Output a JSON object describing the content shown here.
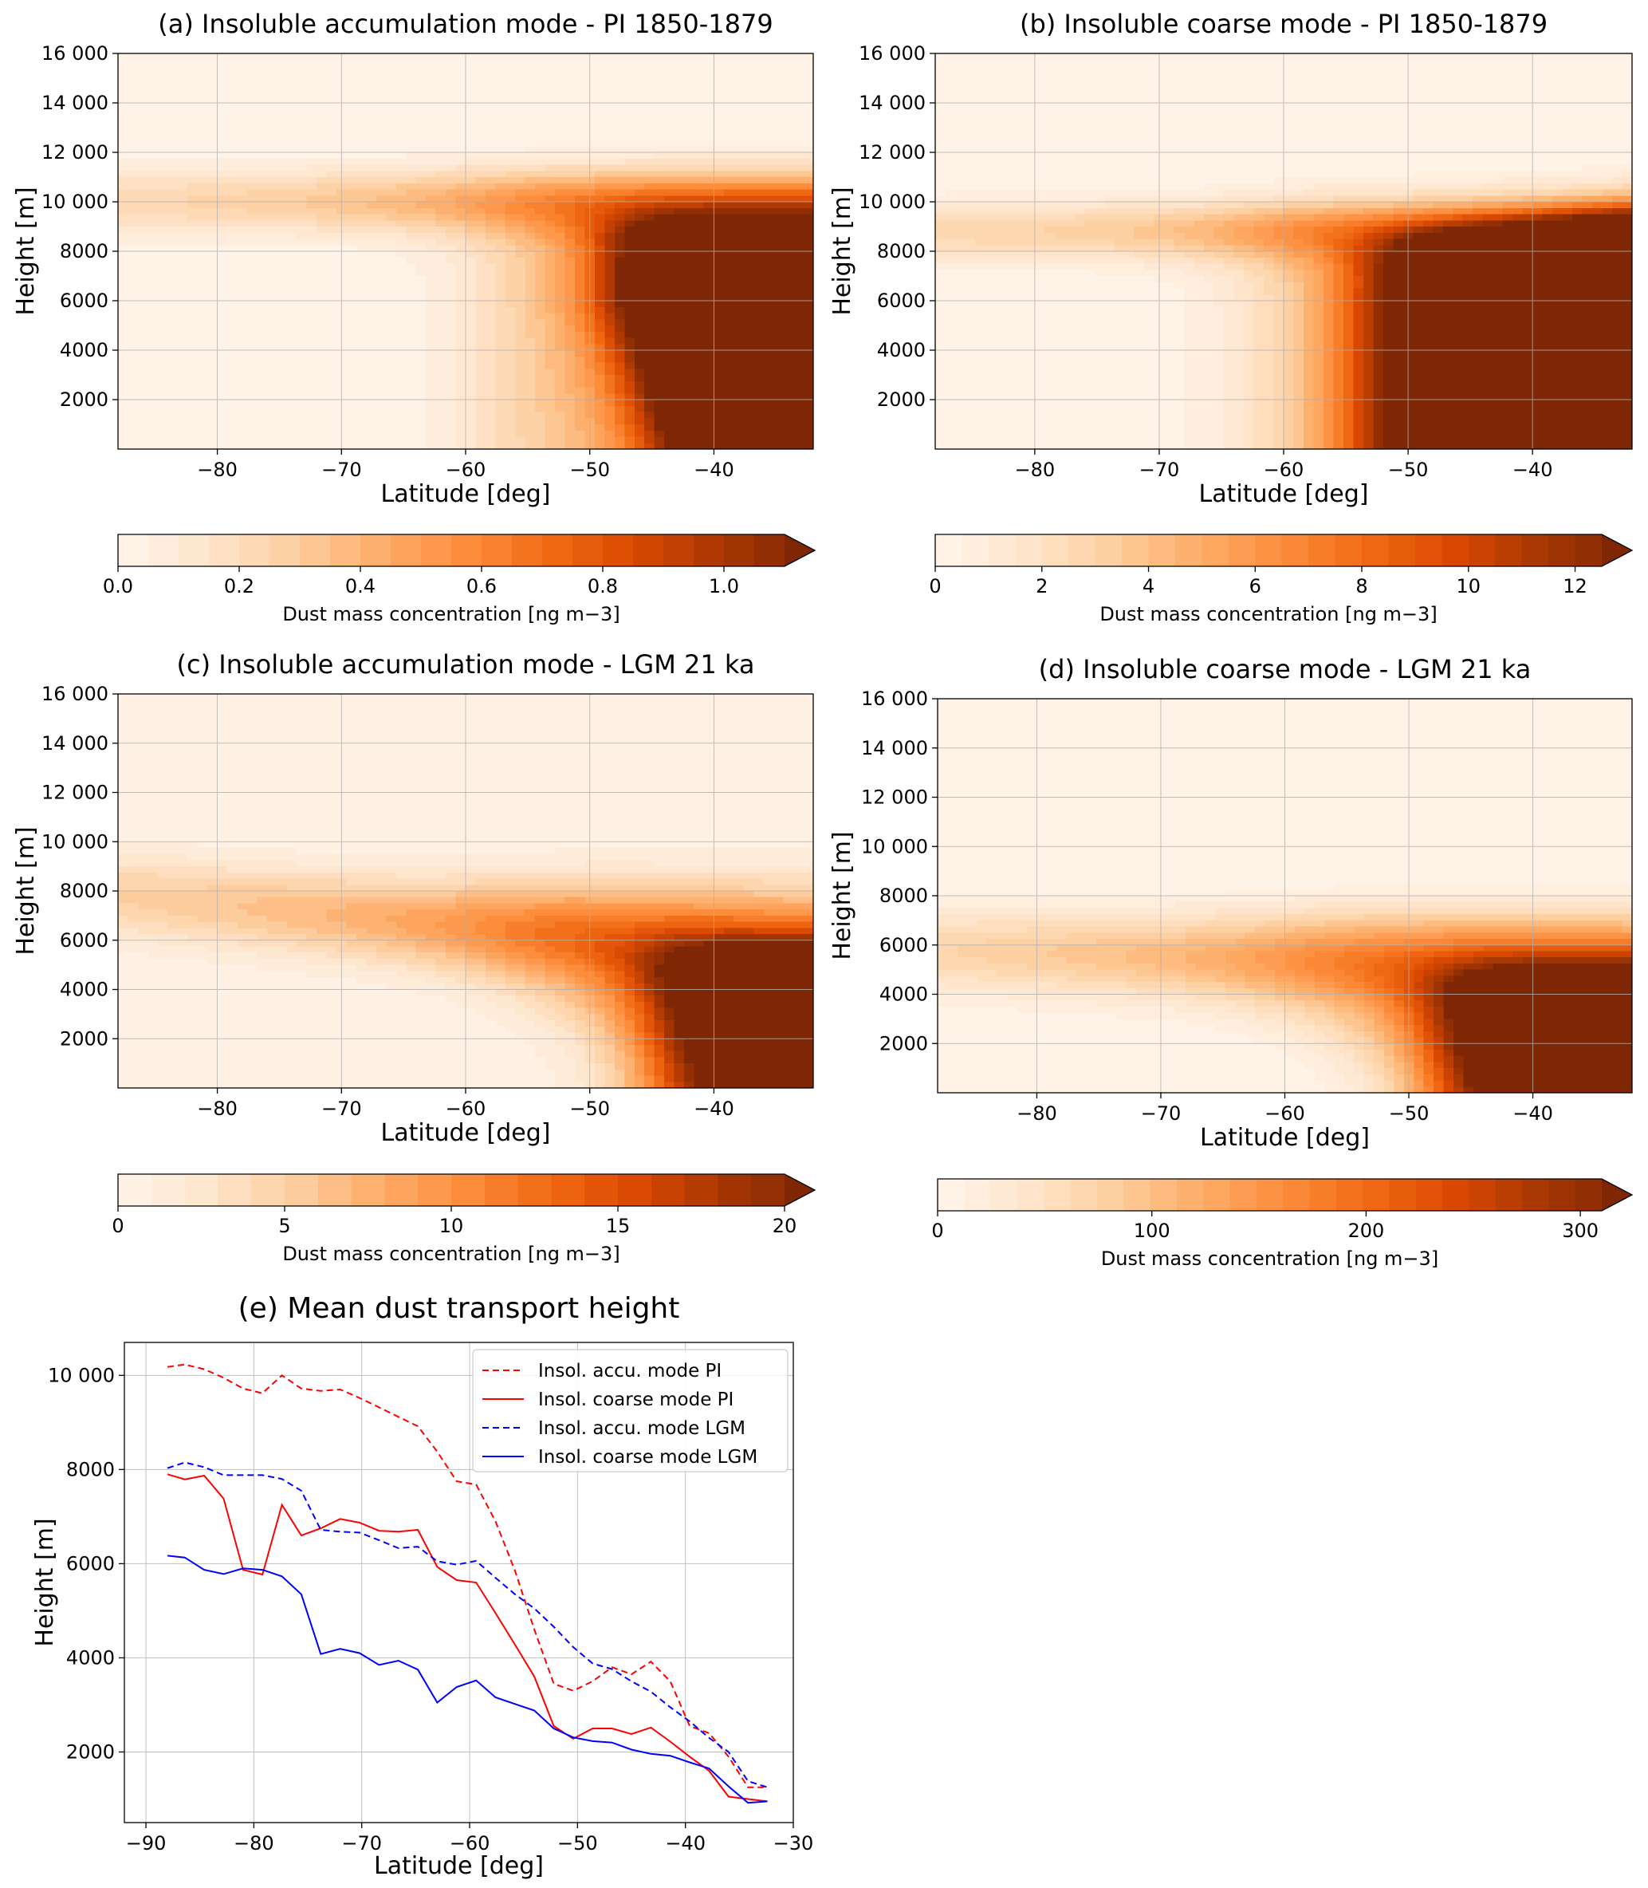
{
  "chart_data": [
    {
      "id": "a",
      "type": "heatmap",
      "title": "(a) Insoluble accumulation mode - PI 1850-1879",
      "xlabel": "Latitude [deg]",
      "ylabel": "Height [m]",
      "xlim": [
        -88,
        -32
      ],
      "ylim": [
        0,
        16000
      ],
      "xticks": [
        -80,
        -70,
        -60,
        -50,
        -40
      ],
      "xtick_labels": [
        "−80",
        "−70",
        "−60",
        "−50",
        "−40"
      ],
      "yticks": [
        2000,
        4000,
        6000,
        8000,
        10000,
        12000,
        14000,
        16000
      ],
      "ytick_labels": [
        "2000",
        "4000",
        "6000",
        "8000",
        "10 000",
        "12 000",
        "14 000",
        "16 000"
      ],
      "grid": true,
      "colorbar": {
        "label": "Dust mass concentration [ng m−3]",
        "min": 0,
        "max": 1.1,
        "levels": 22,
        "extend": "max",
        "ticks": [
          0.0,
          0.2,
          0.4,
          0.6,
          0.8,
          1.0
        ],
        "tick_labels": [
          "0.0",
          "0.2",
          "0.4",
          "0.6",
          "0.8",
          "1.0"
        ]
      },
      "field": {
        "description": "upper band near 10000 m, dust maximum north of -48 deg",
        "band_height": 10000,
        "band_width": 1400,
        "band_value": 0.45,
        "core_lat": -48,
        "core_value": 1.4
      }
    },
    {
      "id": "b",
      "type": "heatmap",
      "title": "(b) Insoluble coarse mode - PI 1850-1879",
      "xlabel": "Latitude [deg]",
      "ylabel": "Height [m]",
      "xlim": [
        -88,
        -32
      ],
      "ylim": [
        0,
        16000
      ],
      "xticks": [
        -80,
        -70,
        -60,
        -50,
        -40
      ],
      "xtick_labels": [
        "−80",
        "−70",
        "−60",
        "−50",
        "−40"
      ],
      "yticks": [
        2000,
        4000,
        6000,
        8000,
        10000,
        12000,
        14000,
        16000
      ],
      "ytick_labels": [
        "2000",
        "4000",
        "6000",
        "8000",
        "10 000",
        "12 000",
        "14 000",
        "16 000"
      ],
      "grid": true,
      "colorbar": {
        "label": "Dust mass concentration [ng m−3]",
        "min": 0,
        "max": 12.5,
        "levels": 25,
        "extend": "max",
        "ticks": [
          0,
          2,
          4,
          6,
          8,
          10,
          12
        ],
        "tick_labels": [
          "0",
          "2",
          "4",
          "6",
          "8",
          "10",
          "12"
        ]
      },
      "field": {
        "description": "upper band near 8800 m, dust maximum north of -52 deg",
        "band_height": 8800,
        "band_width": 1300,
        "band_value": 5,
        "core_lat": -52,
        "core_value": 16
      }
    },
    {
      "id": "c",
      "type": "heatmap",
      "title": "(c) Insoluble accumulation mode - LGM 21 ka",
      "xlabel": "Latitude [deg]",
      "ylabel": "Height [m]",
      "xlim": [
        -88,
        -32
      ],
      "ylim": [
        0,
        16000
      ],
      "xticks": [
        -80,
        -70,
        -60,
        -50,
        -40
      ],
      "xtick_labels": [
        "−80",
        "−70",
        "−60",
        "−50",
        "−40"
      ],
      "yticks": [
        2000,
        4000,
        6000,
        8000,
        10000,
        12000,
        14000,
        16000
      ],
      "ytick_labels": [
        "2000",
        "4000",
        "6000",
        "8000",
        "10 000",
        "12 000",
        "14 000",
        "16 000"
      ],
      "grid": true,
      "colorbar": {
        "label": "Dust mass concentration [ng m−3]",
        "min": 0,
        "max": 20,
        "levels": 20,
        "extend": "max",
        "ticks": [
          0,
          5,
          10,
          15,
          20
        ],
        "tick_labels": [
          "0",
          "5",
          "10",
          "15",
          "20"
        ]
      },
      "field": {
        "description": "sloping layer from 8000 m at the pole to 5000 m at -35 deg",
        "band_height": 7500,
        "band_width": 1800,
        "band_value": 8,
        "core_lat": -45,
        "core_value": 26
      }
    },
    {
      "id": "d",
      "type": "heatmap",
      "title": "(d) Insoluble coarse mode - LGM 21 ka",
      "xlabel": "Latitude [deg]",
      "ylabel": "Height [m]",
      "xlim": [
        -88,
        -32
      ],
      "ylim": [
        0,
        16000
      ],
      "xticks": [
        -80,
        -70,
        -60,
        -50,
        -40
      ],
      "xtick_labels": [
        "−80",
        "−70",
        "−60",
        "−50",
        "−40"
      ],
      "yticks": [
        2000,
        4000,
        6000,
        8000,
        10000,
        12000,
        14000,
        16000
      ],
      "ytick_labels": [
        "2000",
        "4000",
        "6000",
        "8000",
        "10 000",
        "12 000",
        "14 000",
        "16 000"
      ],
      "grid": true,
      "colorbar": {
        "label": "Dust mass concentration [ng m−3]",
        "min": 0,
        "max": 310,
        "levels": 25,
        "extend": "max",
        "ticks": [
          0,
          100,
          200,
          300
        ],
        "tick_labels": [
          "0",
          "100",
          "200",
          "300"
        ]
      },
      "field": {
        "description": "sloping layer from 6000 m at the pole to 4500 m at -35 deg",
        "band_height": 5600,
        "band_width": 1600,
        "band_value": 120,
        "core_lat": -46,
        "core_value": 400
      }
    },
    {
      "id": "e",
      "type": "line",
      "title": "(e) Mean dust transport height",
      "xlabel": "Latitude [deg]",
      "ylabel": "Height [m]",
      "xlim": [
        -92,
        -30
      ],
      "ylim": [
        500,
        10700
      ],
      "xticks": [
        -90,
        -80,
        -70,
        -60,
        -50,
        -40,
        -30
      ],
      "xtick_labels": [
        "−90",
        "−80",
        "−70",
        "−60",
        "−50",
        "−40",
        "−30"
      ],
      "yticks": [
        2000,
        4000,
        6000,
        8000,
        10000
      ],
      "ytick_labels": [
        "2000",
        "4000",
        "6000",
        "8000",
        "10 000"
      ],
      "grid": true,
      "legend_position": "top-right",
      "x": [
        -88.0,
        -86.4,
        -84.6,
        -82.8,
        -81.0,
        -79.2,
        -77.4,
        -75.6,
        -73.8,
        -72.0,
        -70.2,
        -68.4,
        -66.6,
        -64.8,
        -63.0,
        -61.2,
        -59.4,
        -57.6,
        -55.8,
        -54.0,
        -52.2,
        -50.4,
        -48.6,
        -46.8,
        -45.0,
        -43.2,
        -41.4,
        -39.6,
        -37.8,
        -36.0,
        -34.2,
        -32.4
      ],
      "series": [
        {
          "name": "Insol. accu. mode PI",
          "color": "#ff0000",
          "dash": true,
          "values": [
            10180,
            10230,
            10130,
            9950,
            9720,
            9620,
            10000,
            9720,
            9670,
            9700,
            9520,
            9320,
            9120,
            8920,
            8380,
            7750,
            7680,
            6900,
            5850,
            4600,
            3450,
            3300,
            3500,
            3800,
            3650,
            3920,
            3500,
            2550,
            2400,
            1900,
            1250,
            1250
          ]
        },
        {
          "name": "Insol. coarse mode PI",
          "color": "#ff0000",
          "dash": false,
          "values": [
            7900,
            7790,
            7870,
            7380,
            5870,
            5770,
            7250,
            6600,
            6750,
            6950,
            6870,
            6700,
            6680,
            6720,
            5930,
            5650,
            5600,
            4950,
            4280,
            3600,
            2550,
            2280,
            2500,
            2500,
            2380,
            2520,
            2220,
            1900,
            1600,
            1050,
            1000,
            950
          ]
        },
        {
          "name": "Insol. accu. mode LGM",
          "color": "#0000ff",
          "dash": true,
          "values": [
            8030,
            8150,
            8050,
            7880,
            7880,
            7880,
            7800,
            7550,
            6720,
            6680,
            6660,
            6500,
            6330,
            6360,
            6050,
            5980,
            6060,
            5700,
            5350,
            5050,
            4660,
            4230,
            3880,
            3760,
            3500,
            3280,
            2950,
            2650,
            2300,
            2000,
            1380,
            1250
          ]
        },
        {
          "name": "Insol. coarse mode LGM",
          "color": "#0000ff",
          "dash": false,
          "values": [
            6170,
            6130,
            5870,
            5780,
            5900,
            5870,
            5730,
            5350,
            4080,
            4190,
            4100,
            3850,
            3940,
            3750,
            3050,
            3380,
            3520,
            3160,
            3020,
            2880,
            2500,
            2310,
            2230,
            2200,
            2050,
            1960,
            1920,
            1780,
            1650,
            1270,
            920,
            950
          ]
        }
      ]
    }
  ]
}
